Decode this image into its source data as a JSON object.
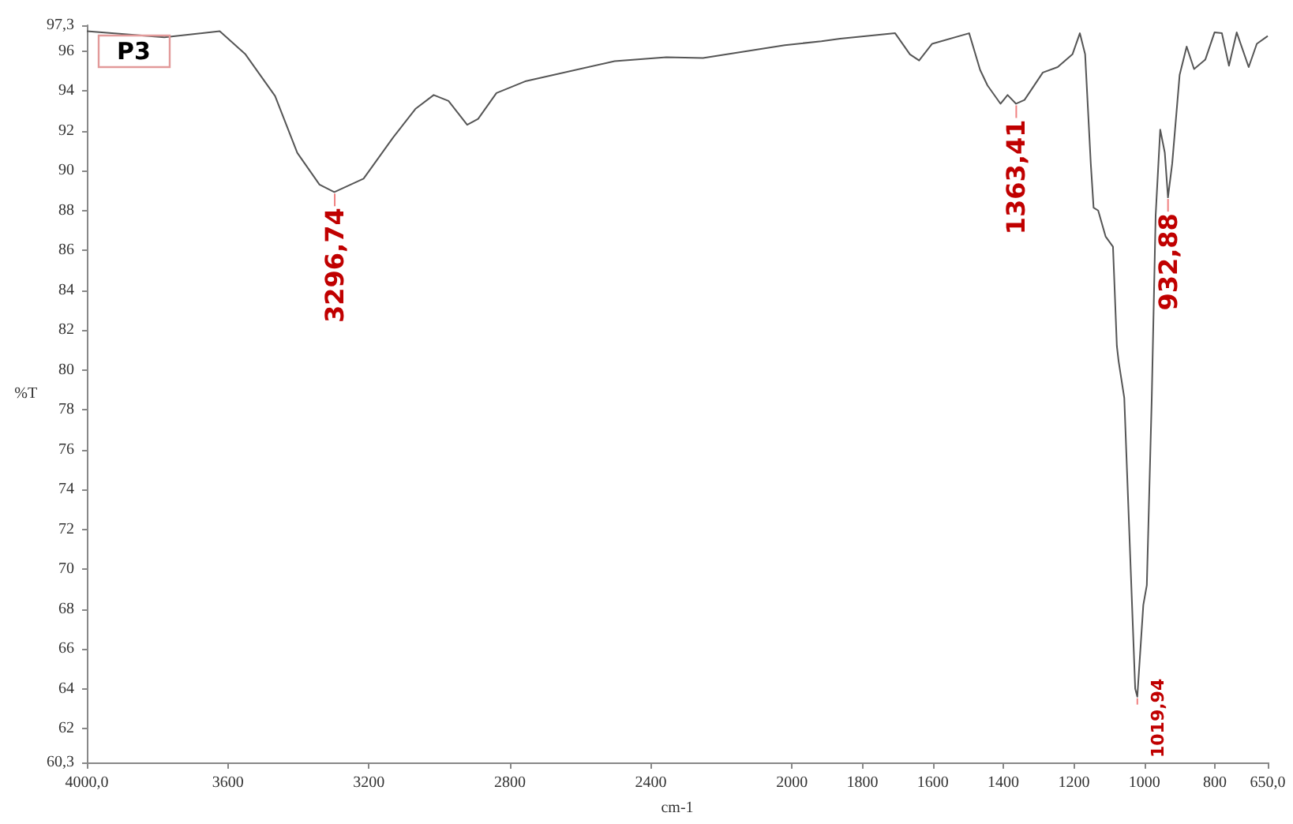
{
  "chart_data": {
    "type": "line",
    "title": "P3",
    "xlabel": "cm-1",
    "ylabel": "%T",
    "x": [
      4000,
      3780,
      3623,
      3550,
      3466,
      3403,
      3340,
      3298,
      3215,
      3131,
      3068,
      3016,
      2974,
      2921,
      2890,
      2838,
      2754,
      2503,
      2356,
      2252,
      2020,
      1916,
      1863,
      1707,
      1665,
      1639,
      1602,
      1497,
      1466,
      1445,
      1408,
      1388,
      1364,
      1340,
      1288,
      1246,
      1204,
      1183,
      1168,
      1152,
      1144,
      1131,
      1110,
      1089,
      1078,
      1073,
      1057,
      1026,
      1020,
      1003,
      993,
      979,
      968,
      955,
      942,
      933,
      921,
      900,
      880,
      859,
      827,
      801,
      780,
      760,
      738,
      704,
      681,
      650
    ],
    "series": [
      {
        "color": "#555555",
        "values": [
          97.0,
          96.7,
          97.0,
          95.84,
          93.75,
          90.9,
          89.3,
          88.93,
          89.6,
          91.67,
          93.1,
          93.8,
          93.5,
          92.3,
          92.6,
          93.9,
          94.5,
          95.5,
          95.7,
          95.66,
          96.3,
          96.5,
          96.63,
          96.9,
          95.84,
          95.53,
          96.37,
          96.9,
          95.06,
          94.28,
          93.36,
          93.8,
          93.36,
          93.55,
          94.93,
          95.2,
          95.84,
          96.9,
          95.84,
          90.36,
          88.14,
          88.0,
          86.7,
          86.18,
          81.2,
          80.43,
          78.6,
          64.0,
          63.6,
          68.2,
          69.2,
          78.6,
          87.75,
          92.06,
          90.9,
          88.66,
          90.36,
          94.8,
          96.23,
          95.1,
          95.58,
          96.94,
          96.9,
          95.27,
          96.94,
          95.2,
          96.37,
          96.76
        ]
      }
    ],
    "xlim": [
      4000,
      650
    ],
    "xticks": [
      {
        "value": 4000,
        "label": "4000,0"
      },
      3600,
      3200,
      2800,
      2400,
      2000,
      1800,
      1600,
      1400,
      1200,
      1000,
      800,
      {
        "value": 650,
        "label": "650,0"
      }
    ],
    "ylim": [
      60.3,
      97.3
    ],
    "yticks": [
      {
        "value": 60.3,
        "label": "60,3"
      },
      62,
      64,
      66,
      68,
      70,
      72,
      74,
      76,
      78,
      80,
      82,
      84,
      86,
      88,
      90,
      92,
      94,
      96,
      {
        "value": 97.3,
        "label": "97,3"
      }
    ],
    "annotations": [
      {
        "text": "3296,74",
        "x": 3296.74,
        "y": 88.93
      },
      {
        "text": "1363,41",
        "x": 1363.41,
        "y": 93.36
      },
      {
        "text": "1019,94",
        "x": 1019.94,
        "y": 63.6
      },
      {
        "text": "932,88",
        "x": 932.88,
        "y": 88.66
      }
    ],
    "grid": false,
    "marker": "none",
    "line_style": "solid"
  }
}
